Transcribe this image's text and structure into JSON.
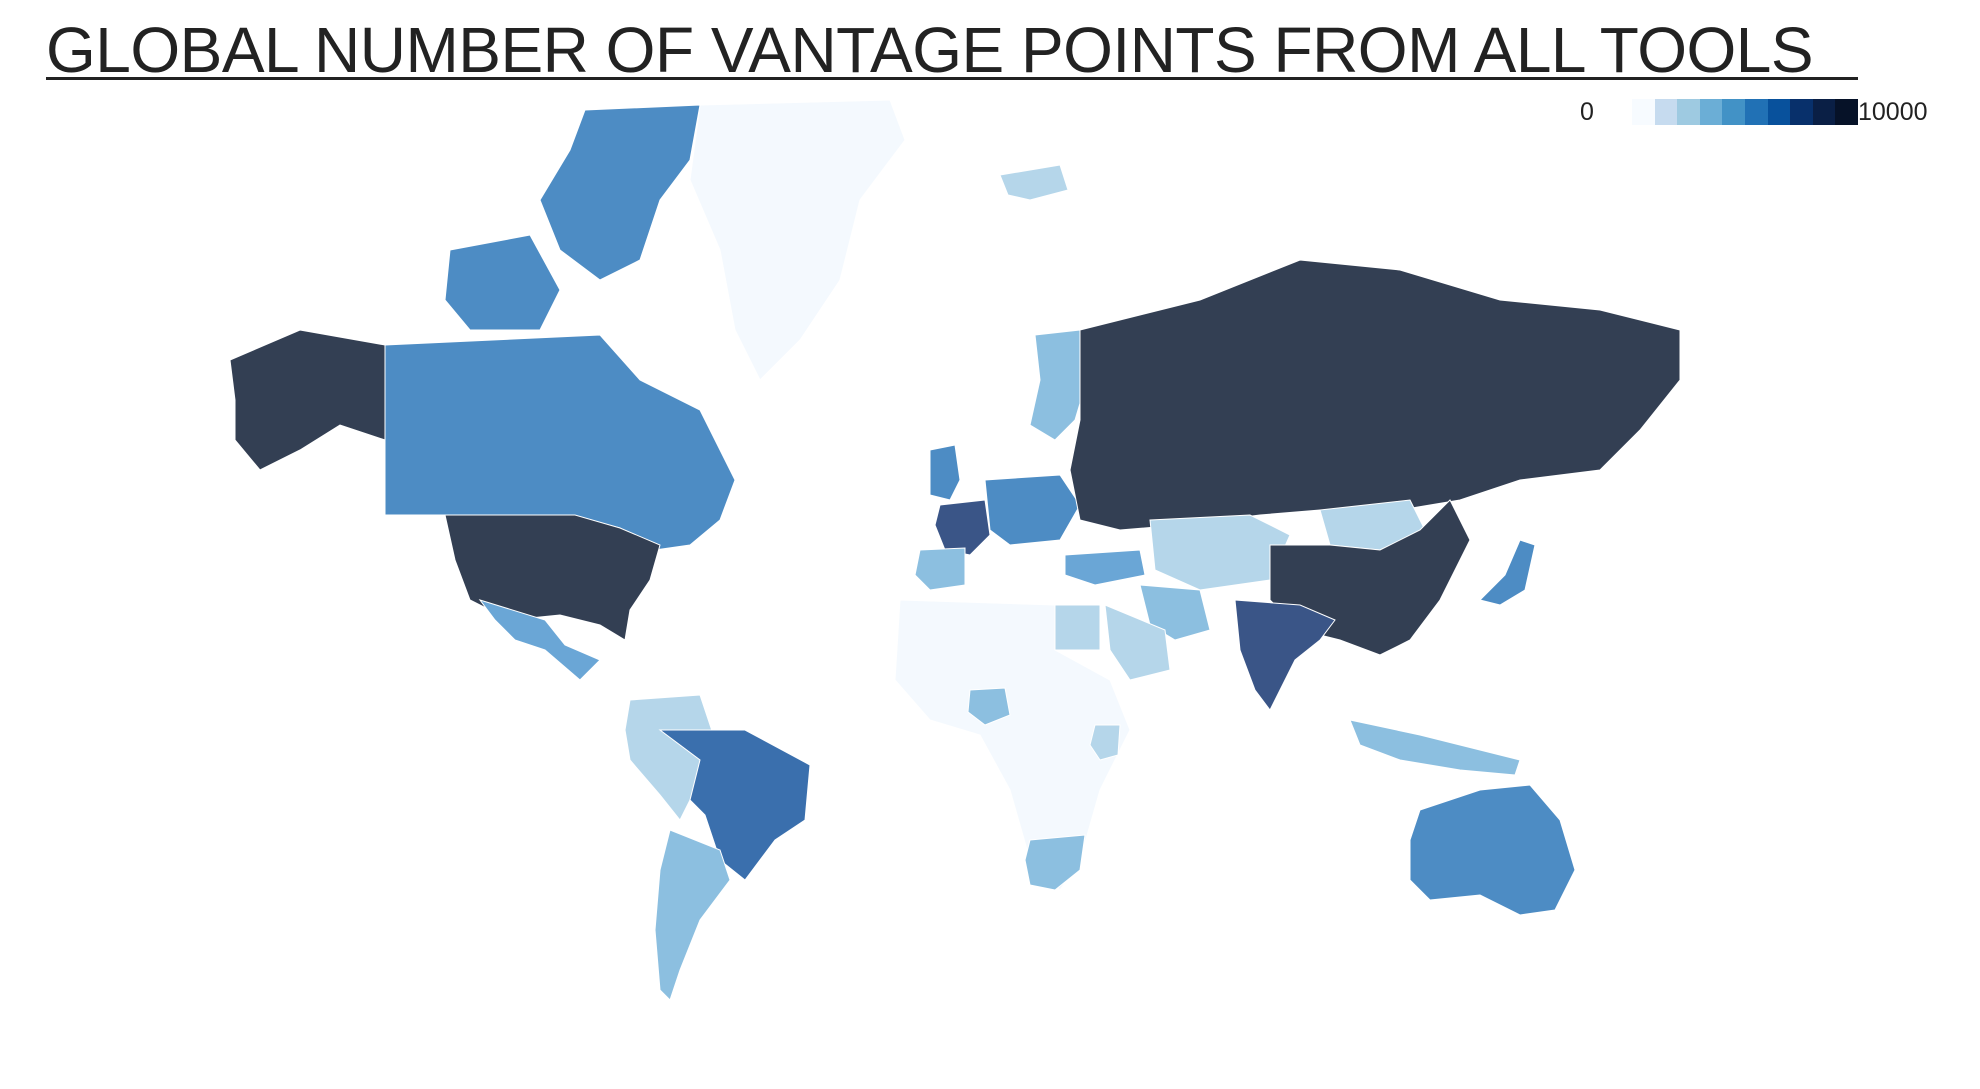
{
  "title": "GLOBAL NUMBER OF VANTAGE POINTS FROM ALL TOOLS",
  "legend": {
    "min_label": "0",
    "max_label": "10000",
    "scale": [
      "#f7fbff",
      "#c6dbef",
      "#9ecae1",
      "#6baed6",
      "#4292c6",
      "#2171b5",
      "#08519c",
      "#08306b",
      "#0a1f45",
      "#061228"
    ]
  },
  "colors": {
    "very_high": "#333f53",
    "high": "#3a5587",
    "upper_mid": "#3a6fad",
    "mid": "#4d8cc4",
    "low_mid": "#6aa6d6",
    "low": "#8cbfe0",
    "very_low": "#b5d6ea",
    "minimal": "#f4f9fe",
    "border": "#ffffff"
  },
  "map_data": {
    "regions": [
      {
        "name": "United States",
        "level": "very_high"
      },
      {
        "name": "Alaska",
        "level": "very_high"
      },
      {
        "name": "Russia",
        "level": "very_high"
      },
      {
        "name": "China",
        "level": "very_high"
      },
      {
        "name": "India",
        "level": "high"
      },
      {
        "name": "France",
        "level": "high"
      },
      {
        "name": "Brazil",
        "level": "upper_mid"
      },
      {
        "name": "Canada",
        "level": "mid"
      },
      {
        "name": "Australia",
        "level": "mid"
      },
      {
        "name": "Japan",
        "level": "mid"
      },
      {
        "name": "Germany",
        "level": "mid"
      },
      {
        "name": "United Kingdom",
        "level": "mid"
      },
      {
        "name": "Mexico",
        "level": "low_mid"
      },
      {
        "name": "Turkey",
        "level": "low_mid"
      },
      {
        "name": "Spain",
        "level": "low"
      },
      {
        "name": "Argentina",
        "level": "low"
      },
      {
        "name": "South Africa",
        "level": "low"
      },
      {
        "name": "Iran",
        "level": "low"
      },
      {
        "name": "Scandinavia",
        "level": "low"
      },
      {
        "name": "Kazakhstan",
        "level": "very_low"
      },
      {
        "name": "Mongolia",
        "level": "very_low"
      },
      {
        "name": "Saudi Arabia",
        "level": "very_low"
      },
      {
        "name": "Egypt",
        "level": "very_low"
      },
      {
        "name": "Iceland",
        "level": "very_low"
      },
      {
        "name": "Nigeria",
        "level": "low"
      },
      {
        "name": "Kenya",
        "level": "very_low"
      },
      {
        "name": "Western South America",
        "level": "very_low"
      },
      {
        "name": "Indonesia",
        "level": "low"
      },
      {
        "name": "Greenland",
        "level": "minimal"
      },
      {
        "name": "Africa",
        "level": "minimal"
      }
    ]
  }
}
